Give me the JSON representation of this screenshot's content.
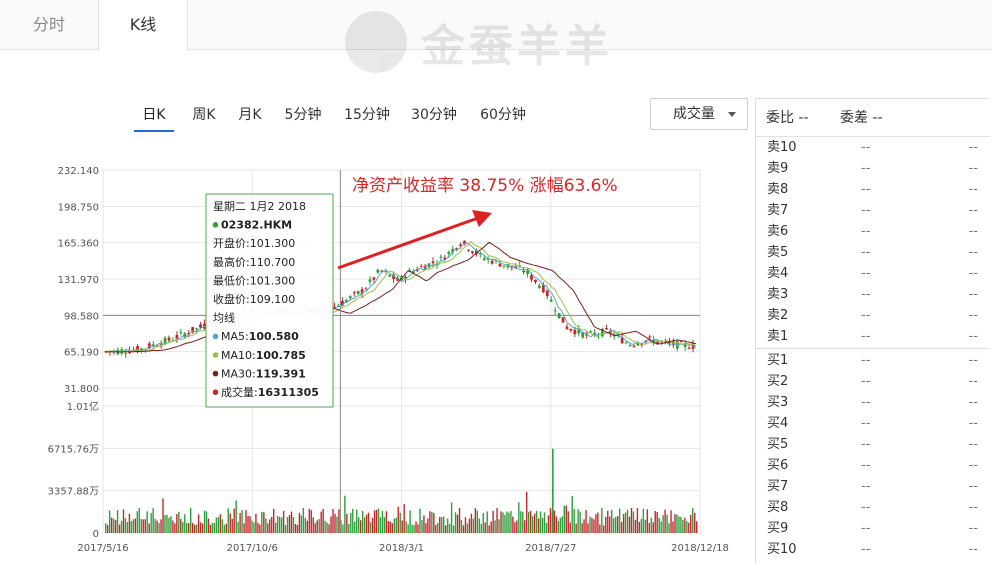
{
  "tabs": [
    {
      "label": "分时",
      "active": false
    },
    {
      "label": "K线",
      "active": true
    }
  ],
  "watermark": "金蚕羊羊",
  "period_tabs": [
    {
      "label": "日K",
      "active": true
    },
    {
      "label": "周K",
      "active": false
    },
    {
      "label": "月K",
      "active": false
    },
    {
      "label": "5分钟",
      "active": false
    },
    {
      "label": "15分钟",
      "active": false
    },
    {
      "label": "30分钟",
      "active": false
    },
    {
      "label": "60分钟",
      "active": false
    }
  ],
  "indicator_select": {
    "value": "成交量"
  },
  "annotation": {
    "text": "净资产收益率  38.75%   涨幅63.6%",
    "color": "#d9252a"
  },
  "colors": {
    "up": "#c1272d",
    "down": "#2e9e3a",
    "ma5": "#4fa8c8",
    "ma10": "#9bc24a",
    "ma30": "#7a1f1f",
    "volume": "#c1272d"
  },
  "tooltip": {
    "date": "星期二  1月2 2018",
    "code": "02382.HKM",
    "open": "开盘价:101.300",
    "high": "最高价:110.700",
    "low": "最低价:101.300",
    "close": "收盘价:109.100",
    "ma_label": "均线",
    "ma5_label": "MA5:",
    "ma5_value": "100.580",
    "ma10_label": "MA10:",
    "ma10_value": "100.785",
    "ma30_label": "MA30:",
    "ma30_value": "119.391",
    "vol_label": "成交量:",
    "vol_value": "16311305"
  },
  "chart_data": {
    "type": "candlestick",
    "price_axis_ticks": [
      "232.140",
      "198.750",
      "165.360",
      "131.970",
      "98.580",
      "65.190",
      "31.800"
    ],
    "ylim": [
      31.8,
      232.14
    ],
    "volume_axis_ticks": [
      "1.01亿",
      "6715.76万",
      "3357.88万",
      "0"
    ],
    "volume_ylim": [
      0,
      101000000
    ],
    "x_tick_labels": [
      "2017/5/16",
      "2017/10/6",
      "2018/3/1",
      "2018/7/27",
      "2018/12/18"
    ],
    "reference_price": 98.58,
    "close_trend": [
      {
        "date": "2017-05-16",
        "close": 65
      },
      {
        "date": "2017-06-20",
        "close": 67
      },
      {
        "date": "2017-07-20",
        "close": 76
      },
      {
        "date": "2017-08-20",
        "close": 88
      },
      {
        "date": "2017-09-15",
        "close": 97
      },
      {
        "date": "2017-10-06",
        "close": 104
      },
      {
        "date": "2017-10-25",
        "close": 99
      },
      {
        "date": "2017-11-20",
        "close": 108
      },
      {
        "date": "2017-12-15",
        "close": 100
      },
      {
        "date": "2018-01-02",
        "close": 109.1
      },
      {
        "date": "2018-01-25",
        "close": 122
      },
      {
        "date": "2018-02-10",
        "close": 140
      },
      {
        "date": "2018-02-28",
        "close": 130
      },
      {
        "date": "2018-03-10",
        "close": 138
      },
      {
        "date": "2018-04-10",
        "close": 150
      },
      {
        "date": "2018-04-30",
        "close": 166
      },
      {
        "date": "2018-05-20",
        "close": 152
      },
      {
        "date": "2018-06-10",
        "close": 145
      },
      {
        "date": "2018-06-30",
        "close": 140
      },
      {
        "date": "2018-07-20",
        "close": 122
      },
      {
        "date": "2018-08-10",
        "close": 88
      },
      {
        "date": "2018-08-30",
        "close": 80
      },
      {
        "date": "2018-09-20",
        "close": 84
      },
      {
        "date": "2018-10-10",
        "close": 72
      },
      {
        "date": "2018-10-30",
        "close": 76
      },
      {
        "date": "2018-11-20",
        "close": 72
      },
      {
        "date": "2018-12-18",
        "close": 70
      }
    ],
    "volume_peak": {
      "date": "2018-07-27",
      "value": 67000000
    }
  },
  "order_book": {
    "header_ratio": "委比 --",
    "header_diff": "委差 --",
    "sells": [
      {
        "label": "卖10",
        "price": "--",
        "volume": "--"
      },
      {
        "label": "卖9",
        "price": "--",
        "volume": "--"
      },
      {
        "label": "卖8",
        "price": "--",
        "volume": "--"
      },
      {
        "label": "卖7",
        "price": "--",
        "volume": "--"
      },
      {
        "label": "卖6",
        "price": "--",
        "volume": "--"
      },
      {
        "label": "卖5",
        "price": "--",
        "volume": "--"
      },
      {
        "label": "卖4",
        "price": "--",
        "volume": "--"
      },
      {
        "label": "卖3",
        "price": "--",
        "volume": "--"
      },
      {
        "label": "卖2",
        "price": "--",
        "volume": "--"
      },
      {
        "label": "卖1",
        "price": "--",
        "volume": "--"
      }
    ],
    "buys": [
      {
        "label": "买1",
        "price": "--",
        "volume": "--"
      },
      {
        "label": "买2",
        "price": "--",
        "volume": "--"
      },
      {
        "label": "买3",
        "price": "--",
        "volume": "--"
      },
      {
        "label": "买4",
        "price": "--",
        "volume": "--"
      },
      {
        "label": "买5",
        "price": "--",
        "volume": "--"
      },
      {
        "label": "买6",
        "price": "--",
        "volume": "--"
      },
      {
        "label": "买7",
        "price": "--",
        "volume": "--"
      },
      {
        "label": "买8",
        "price": "--",
        "volume": "--"
      },
      {
        "label": "买9",
        "price": "--",
        "volume": "--"
      },
      {
        "label": "买10",
        "price": "--",
        "volume": "--"
      }
    ]
  }
}
